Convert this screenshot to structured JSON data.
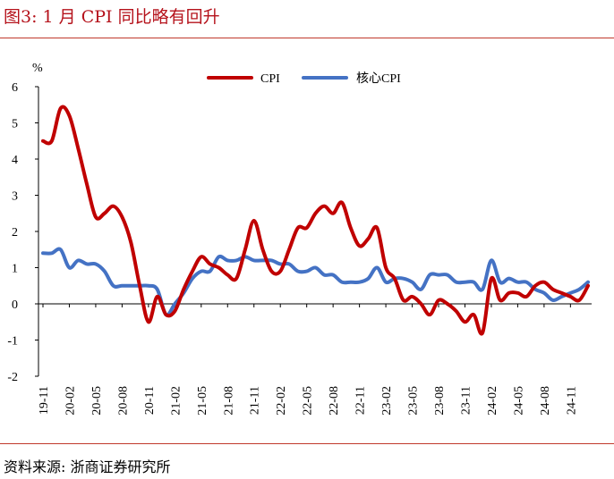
{
  "figure": {
    "title": "图3:   1 月 CPI 同比略有回升",
    "source": "资料来源:  浙商证券研究所"
  },
  "colors": {
    "cpi": "#c00000",
    "core": "#4472c4",
    "accent": "#b5121b"
  },
  "chart_data": {
    "type": "line",
    "ylabel": "%",
    "ylim": [
      -2,
      6
    ],
    "yticks": [
      -2,
      -1,
      0,
      1,
      2,
      3,
      4,
      5,
      6
    ],
    "grid": false,
    "legend_position": "top-center",
    "x": [
      "19-11",
      "19-12",
      "20-01",
      "20-02",
      "20-03",
      "20-04",
      "20-05",
      "20-06",
      "20-07",
      "20-08",
      "20-09",
      "20-10",
      "20-11",
      "20-12",
      "21-01",
      "21-02",
      "21-03",
      "21-04",
      "21-05",
      "21-06",
      "21-07",
      "21-08",
      "21-09",
      "21-10",
      "21-11",
      "21-12",
      "22-01",
      "22-02",
      "22-03",
      "22-04",
      "22-05",
      "22-06",
      "22-07",
      "22-08",
      "22-09",
      "22-10",
      "22-11",
      "22-12",
      "23-01",
      "23-02",
      "23-03",
      "23-04",
      "23-05",
      "23-06",
      "23-07",
      "23-08",
      "23-09",
      "23-10",
      "23-11",
      "23-12",
      "24-01",
      "24-02",
      "24-03",
      "24-04",
      "24-05",
      "24-06",
      "24-07",
      "24-08",
      "24-09",
      "24-10",
      "24-11",
      "24-12",
      "25-01"
    ],
    "xtick_labels": [
      "19-11",
      "20-02",
      "20-05",
      "20-08",
      "20-11",
      "21-02",
      "21-05",
      "21-08",
      "21-11",
      "22-02",
      "22-05",
      "22-08",
      "22-11",
      "23-02",
      "23-05",
      "23-08",
      "23-11",
      "24-02",
      "24-05",
      "24-08",
      "24-11"
    ],
    "series": [
      {
        "name": "CPI",
        "color": "#c00000",
        "values": [
          4.5,
          4.5,
          5.4,
          5.2,
          4.3,
          3.3,
          2.4,
          2.5,
          2.7,
          2.4,
          1.7,
          0.5,
          -0.5,
          0.2,
          -0.3,
          -0.2,
          0.4,
          0.9,
          1.3,
          1.1,
          1.0,
          0.8,
          0.7,
          1.5,
          2.3,
          1.5,
          0.9,
          0.9,
          1.5,
          2.1,
          2.1,
          2.5,
          2.7,
          2.5,
          2.8,
          2.1,
          1.6,
          1.8,
          2.1,
          1.0,
          0.7,
          0.1,
          0.2,
          0.0,
          -0.3,
          0.1,
          0.0,
          -0.2,
          -0.5,
          -0.3,
          -0.8,
          0.7,
          0.1,
          0.3,
          0.3,
          0.2,
          0.5,
          0.6,
          0.4,
          0.3,
          0.2,
          0.1,
          0.5
        ]
      },
      {
        "name": "核心CPI",
        "color": "#4472c4",
        "values": [
          1.4,
          1.4,
          1.5,
          1.0,
          1.2,
          1.1,
          1.1,
          0.9,
          0.5,
          0.5,
          0.5,
          0.5,
          0.5,
          0.4,
          -0.3,
          0.0,
          0.3,
          0.7,
          0.9,
          0.9,
          1.3,
          1.2,
          1.2,
          1.3,
          1.2,
          1.2,
          1.2,
          1.1,
          1.1,
          0.9,
          0.9,
          1.0,
          0.8,
          0.8,
          0.6,
          0.6,
          0.6,
          0.7,
          1.0,
          0.6,
          0.7,
          0.7,
          0.6,
          0.4,
          0.8,
          0.8,
          0.8,
          0.6,
          0.6,
          0.6,
          0.4,
          1.2,
          0.6,
          0.7,
          0.6,
          0.6,
          0.4,
          0.3,
          0.1,
          0.2,
          0.3,
          0.4,
          0.6
        ]
      }
    ]
  }
}
